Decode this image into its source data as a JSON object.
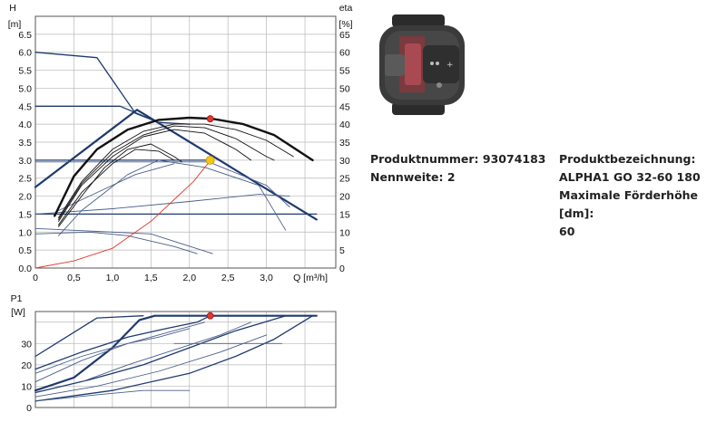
{
  "product": {
    "number_label": "Produktnummer:",
    "number_value": "93074183",
    "nominal_label": "Nennweite:",
    "nominal_value": "2",
    "name_label": "Produktbezeichnung:",
    "name_value": "ALPHA1 GO 32-60 180",
    "max_head_label": "Maximale Förderhöhe [dm]:",
    "max_head_value": "60"
  },
  "image": {
    "name": "pump-photo"
  },
  "colors": {
    "navy": "#1f3a6e",
    "thin": "#4a5f8a",
    "black": "#111111",
    "red": "#e03a2a",
    "yellow": "#f5c518",
    "grid": "#b8b8b8"
  },
  "chart_data": [
    {
      "type": "line",
      "ylabel_left": "H\n[m]",
      "ylabel_right": "eta\n[%]",
      "xlabel": "Q [m³/h]",
      "xlim": [
        0,
        3.9
      ],
      "ylim": [
        0,
        7
      ],
      "ylim_right": [
        0,
        70
      ],
      "xticks": [
        "0",
        "0,5",
        "1,0",
        "1,5",
        "2,0",
        "2,5",
        "3,0"
      ],
      "yticks": [
        "0.0",
        "0.5",
        "1.0",
        "1.5",
        "2.0",
        "2.5",
        "3.0",
        "3.5",
        "4.0",
        "4.5",
        "5.0",
        "5.5",
        "6.0",
        "6.5"
      ],
      "yticks_right": [
        "0",
        "5",
        "10",
        "15",
        "20",
        "25",
        "30",
        "35",
        "40",
        "45",
        "50",
        "55",
        "60",
        "65"
      ],
      "series": [
        {
          "style": "navy-thick",
          "x": [
            0,
            1.32,
            3.65
          ],
          "y": [
            2.25,
            4.4,
            1.35
          ]
        },
        {
          "style": "navy",
          "x": [
            0,
            1.1,
            1.6
          ],
          "y": [
            4.5,
            4.5,
            4.05
          ]
        },
        {
          "style": "navy",
          "x": [
            0,
            2.25
          ],
          "y": [
            3.0,
            3.0
          ]
        },
        {
          "style": "navy",
          "x": [
            0,
            3.65
          ],
          "y": [
            1.5,
            1.5
          ]
        },
        {
          "style": "navy",
          "x": [
            0,
            0.8,
            1.3,
            1.6,
            2.0
          ],
          "y": [
            6.0,
            5.85,
            4.3,
            4.05,
            4.0
          ]
        },
        {
          "style": "thin",
          "x": [
            0,
            2.25,
            3.0,
            3.3
          ],
          "y": [
            2.95,
            2.95,
            2.3,
            1.7
          ]
        },
        {
          "style": "thin",
          "x": [
            0,
            1.5,
            2.3
          ],
          "y": [
            1.1,
            0.95,
            0.4
          ]
        },
        {
          "style": "thin",
          "x": [
            0.3,
            0.8,
            1.3,
            1.8
          ],
          "y": [
            1.6,
            2.1,
            2.6,
            2.9
          ]
        },
        {
          "style": "thin",
          "x": [
            0,
            1.0,
            2.0,
            2.9,
            3.3
          ],
          "y": [
            1.5,
            1.65,
            1.85,
            2.05,
            2.0
          ]
        },
        {
          "style": "thin",
          "x": [
            0,
            0.7,
            1.2,
            1.8,
            2.1
          ],
          "y": [
            0.95,
            1.0,
            0.9,
            0.6,
            0.4
          ]
        },
        {
          "style": "thin",
          "x": [
            0.3,
            0.6,
            0.9,
            1.2,
            1.6,
            2.2,
            2.9,
            3.25
          ],
          "y": [
            0.9,
            1.6,
            2.1,
            2.6,
            3.0,
            2.8,
            2.3,
            1.05
          ]
        },
        {
          "style": "black-thick",
          "x": [
            0.25,
            0.5,
            0.8,
            1.2,
            1.6,
            2.0,
            2.3,
            2.7,
            3.1,
            3.6
          ],
          "y": [
            1.45,
            2.55,
            3.3,
            3.85,
            4.12,
            4.18,
            4.15,
            4.0,
            3.7,
            3.0
          ]
        },
        {
          "style": "black",
          "x": [
            0.3,
            0.6,
            1.0,
            1.4,
            1.8,
            2.2,
            2.6,
            3.0,
            3.35
          ],
          "y": [
            1.4,
            2.4,
            3.3,
            3.8,
            4.0,
            4.0,
            3.85,
            3.55,
            3.1
          ]
        },
        {
          "style": "black",
          "x": [
            0.3,
            0.6,
            1.0,
            1.4,
            1.8,
            2.2,
            2.6,
            3.0,
            3.1
          ],
          "y": [
            1.35,
            2.35,
            3.2,
            3.7,
            3.95,
            3.9,
            3.6,
            3.1,
            3.0
          ]
        },
        {
          "style": "black",
          "x": [
            0.3,
            0.6,
            1.0,
            1.4,
            1.8,
            2.2,
            2.6,
            2.8
          ],
          "y": [
            1.3,
            2.3,
            3.1,
            3.65,
            3.85,
            3.75,
            3.3,
            3.0
          ]
        },
        {
          "style": "black",
          "x": [
            0.3,
            0.6,
            1.0,
            1.3,
            1.6,
            1.8
          ],
          "y": [
            1.2,
            2.1,
            2.9,
            3.3,
            3.25,
            3.0
          ]
        },
        {
          "style": "black",
          "x": [
            0.3,
            0.6,
            0.9,
            1.2,
            1.5,
            1.8,
            1.9
          ],
          "y": [
            1.15,
            2.0,
            2.8,
            3.3,
            3.45,
            3.1,
            2.95
          ]
        },
        {
          "style": "red",
          "x": [
            0,
            0.5,
            1.0,
            1.5,
            1.8,
            2.05,
            2.2,
            2.28
          ],
          "y": [
            0.0,
            0.2,
            0.55,
            1.3,
            1.9,
            2.4,
            2.8,
            3.0
          ]
        }
      ],
      "markers": [
        {
          "x": 2.27,
          "y": 4.15,
          "style": "red"
        },
        {
          "x": 2.27,
          "y": 3.0,
          "style": "yellow"
        }
      ]
    },
    {
      "type": "line",
      "ylabel": "P1\n[W]",
      "xlim": [
        0,
        3.9
      ],
      "ylim": [
        0,
        45
      ],
      "yticks": [
        "0",
        "10",
        "20",
        "30"
      ],
      "series": [
        {
          "style": "navy-thick",
          "x": [
            0,
            0.5,
            1.0,
            1.35,
            1.55,
            3.65
          ],
          "y": [
            8,
            14,
            28,
            41,
            43,
            43
          ]
        },
        {
          "style": "navy",
          "x": [
            0,
            0.8,
            1.4
          ],
          "y": [
            24,
            42,
            43
          ]
        },
        {
          "style": "navy",
          "x": [
            0,
            0.6,
            1.2,
            1.7,
            2.1,
            2.27
          ],
          "y": [
            18,
            26,
            33,
            37,
            40,
            43
          ]
        },
        {
          "style": "navy",
          "x": [
            0,
            0.7,
            1.4,
            2.0,
            2.6,
            3.25
          ],
          "y": [
            7,
            13,
            20,
            28,
            36,
            43
          ]
        },
        {
          "style": "navy",
          "x": [
            0,
            1.0,
            2.0,
            2.6,
            3.1,
            3.6
          ],
          "y": [
            3,
            8,
            16,
            24,
            32,
            43
          ]
        },
        {
          "style": "thin",
          "x": [
            0,
            0.6,
            1.2,
            1.8,
            2.2
          ],
          "y": [
            12,
            22,
            30,
            36,
            40
          ]
        },
        {
          "style": "thin",
          "x": [
            0,
            0.6,
            1.2,
            1.6,
            2.0
          ],
          "y": [
            16,
            24,
            30,
            33,
            37
          ]
        },
        {
          "style": "thin",
          "x": [
            1.8,
            2.3,
            3.2
          ],
          "y": [
            30,
            30,
            30
          ]
        },
        {
          "style": "thin",
          "x": [
            0,
            0.8,
            1.4,
            2.0
          ],
          "y": [
            3,
            6,
            8,
            8
          ]
        },
        {
          "style": "thin",
          "x": [
            0,
            0.8,
            1.6,
            2.4,
            3.0
          ],
          "y": [
            5,
            10,
            17,
            26,
            34
          ]
        },
        {
          "style": "thin",
          "x": [
            0.6,
            1.2,
            1.8,
            2.4,
            2.8
          ],
          "y": [
            12,
            20,
            27,
            34,
            40
          ]
        }
      ],
      "markers": [
        {
          "x": 2.27,
          "y": 43,
          "style": "red"
        }
      ]
    }
  ]
}
